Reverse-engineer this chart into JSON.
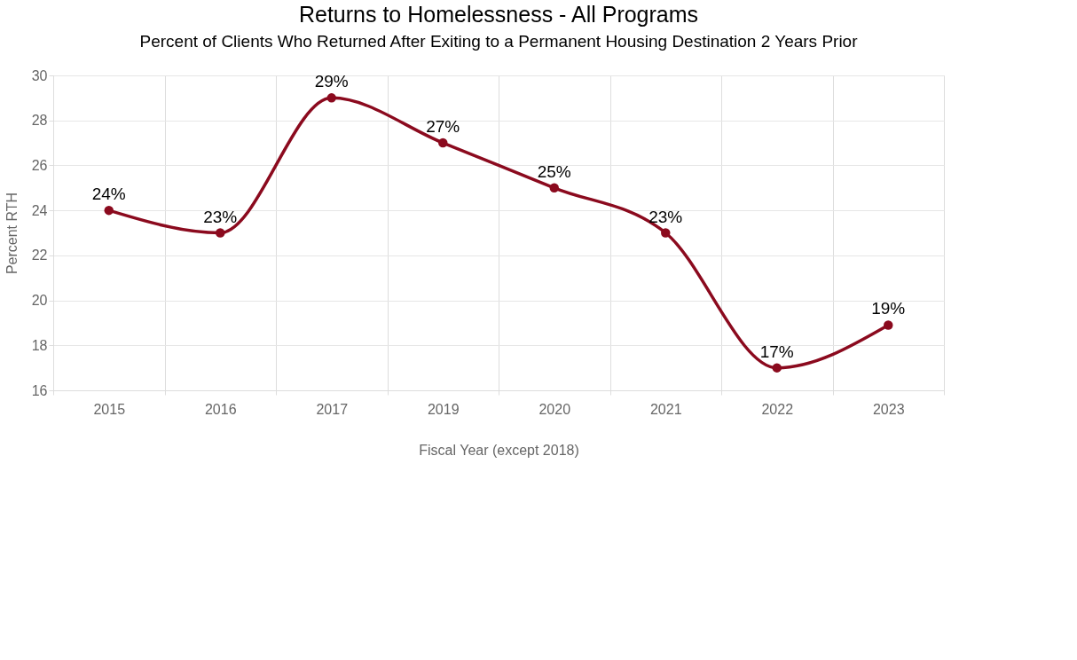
{
  "chart_data": {
    "type": "line",
    "title": "Returns to Homelessness - All Programs",
    "subtitle": "Percent of Clients Who Returned After Exiting to a Permanent Housing Destination 2 Years Prior",
    "xlabel": "Fiscal Year (except 2018)",
    "ylabel": "Percent RTH",
    "categories": [
      "2015",
      "2016",
      "2017",
      "2019",
      "2020",
      "2021",
      "2022",
      "2023"
    ],
    "series": [
      {
        "color": "#8b0a1e",
        "values": [
          24,
          23,
          29,
          27,
          25,
          23,
          17,
          18.9
        ],
        "value_labels": [
          "24%",
          "23%",
          "29%",
          "27%",
          "25%",
          "23%",
          "17%",
          "19%"
        ]
      }
    ],
    "ylim": [
      16,
      30
    ],
    "yticks": [
      16,
      18,
      20,
      22,
      24,
      26,
      28,
      30
    ],
    "grid": true,
    "marker": "circle",
    "line_style": "solid"
  }
}
